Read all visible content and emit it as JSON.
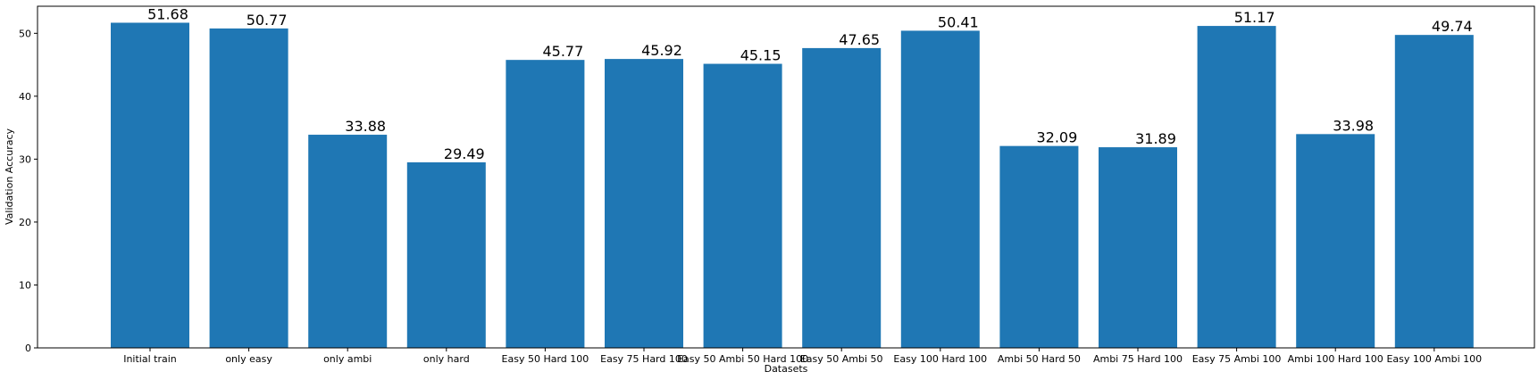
{
  "chart_data": {
    "type": "bar",
    "categories": [
      "Initial train",
      "only easy",
      "only ambi",
      "only hard",
      "Easy 50 Hard 100",
      "Easy 75 Hard 100",
      "Easy 50 Ambi 50 Hard 100",
      "Easy 50 Ambi 50",
      "Easy 100 Hard 100",
      "Ambi 50 Hard 50",
      "Ambi 75 Hard 100",
      "Easy 75 Ambi 100",
      "Ambi 100 Hard 100",
      "Easy 100 Ambi 100"
    ],
    "values": [
      51.68,
      50.77,
      33.88,
      29.49,
      45.77,
      45.92,
      45.15,
      47.65,
      50.41,
      32.09,
      31.89,
      51.17,
      33.98,
      49.74
    ],
    "value_labels": [
      "51.68",
      "50.77",
      "33.88",
      "29.49",
      "45.77",
      "45.92",
      "45.15",
      "47.65",
      "50.41",
      "32.09",
      "31.89",
      "51.17",
      "33.98",
      "49.74"
    ],
    "xlabel": "Datasets",
    "ylabel": "Validation Accuracy",
    "ylim": [
      0,
      54.3
    ],
    "yticks": [
      0,
      10,
      20,
      30,
      40,
      50
    ],
    "bar_color": "#1f77b4",
    "grid": false
  }
}
